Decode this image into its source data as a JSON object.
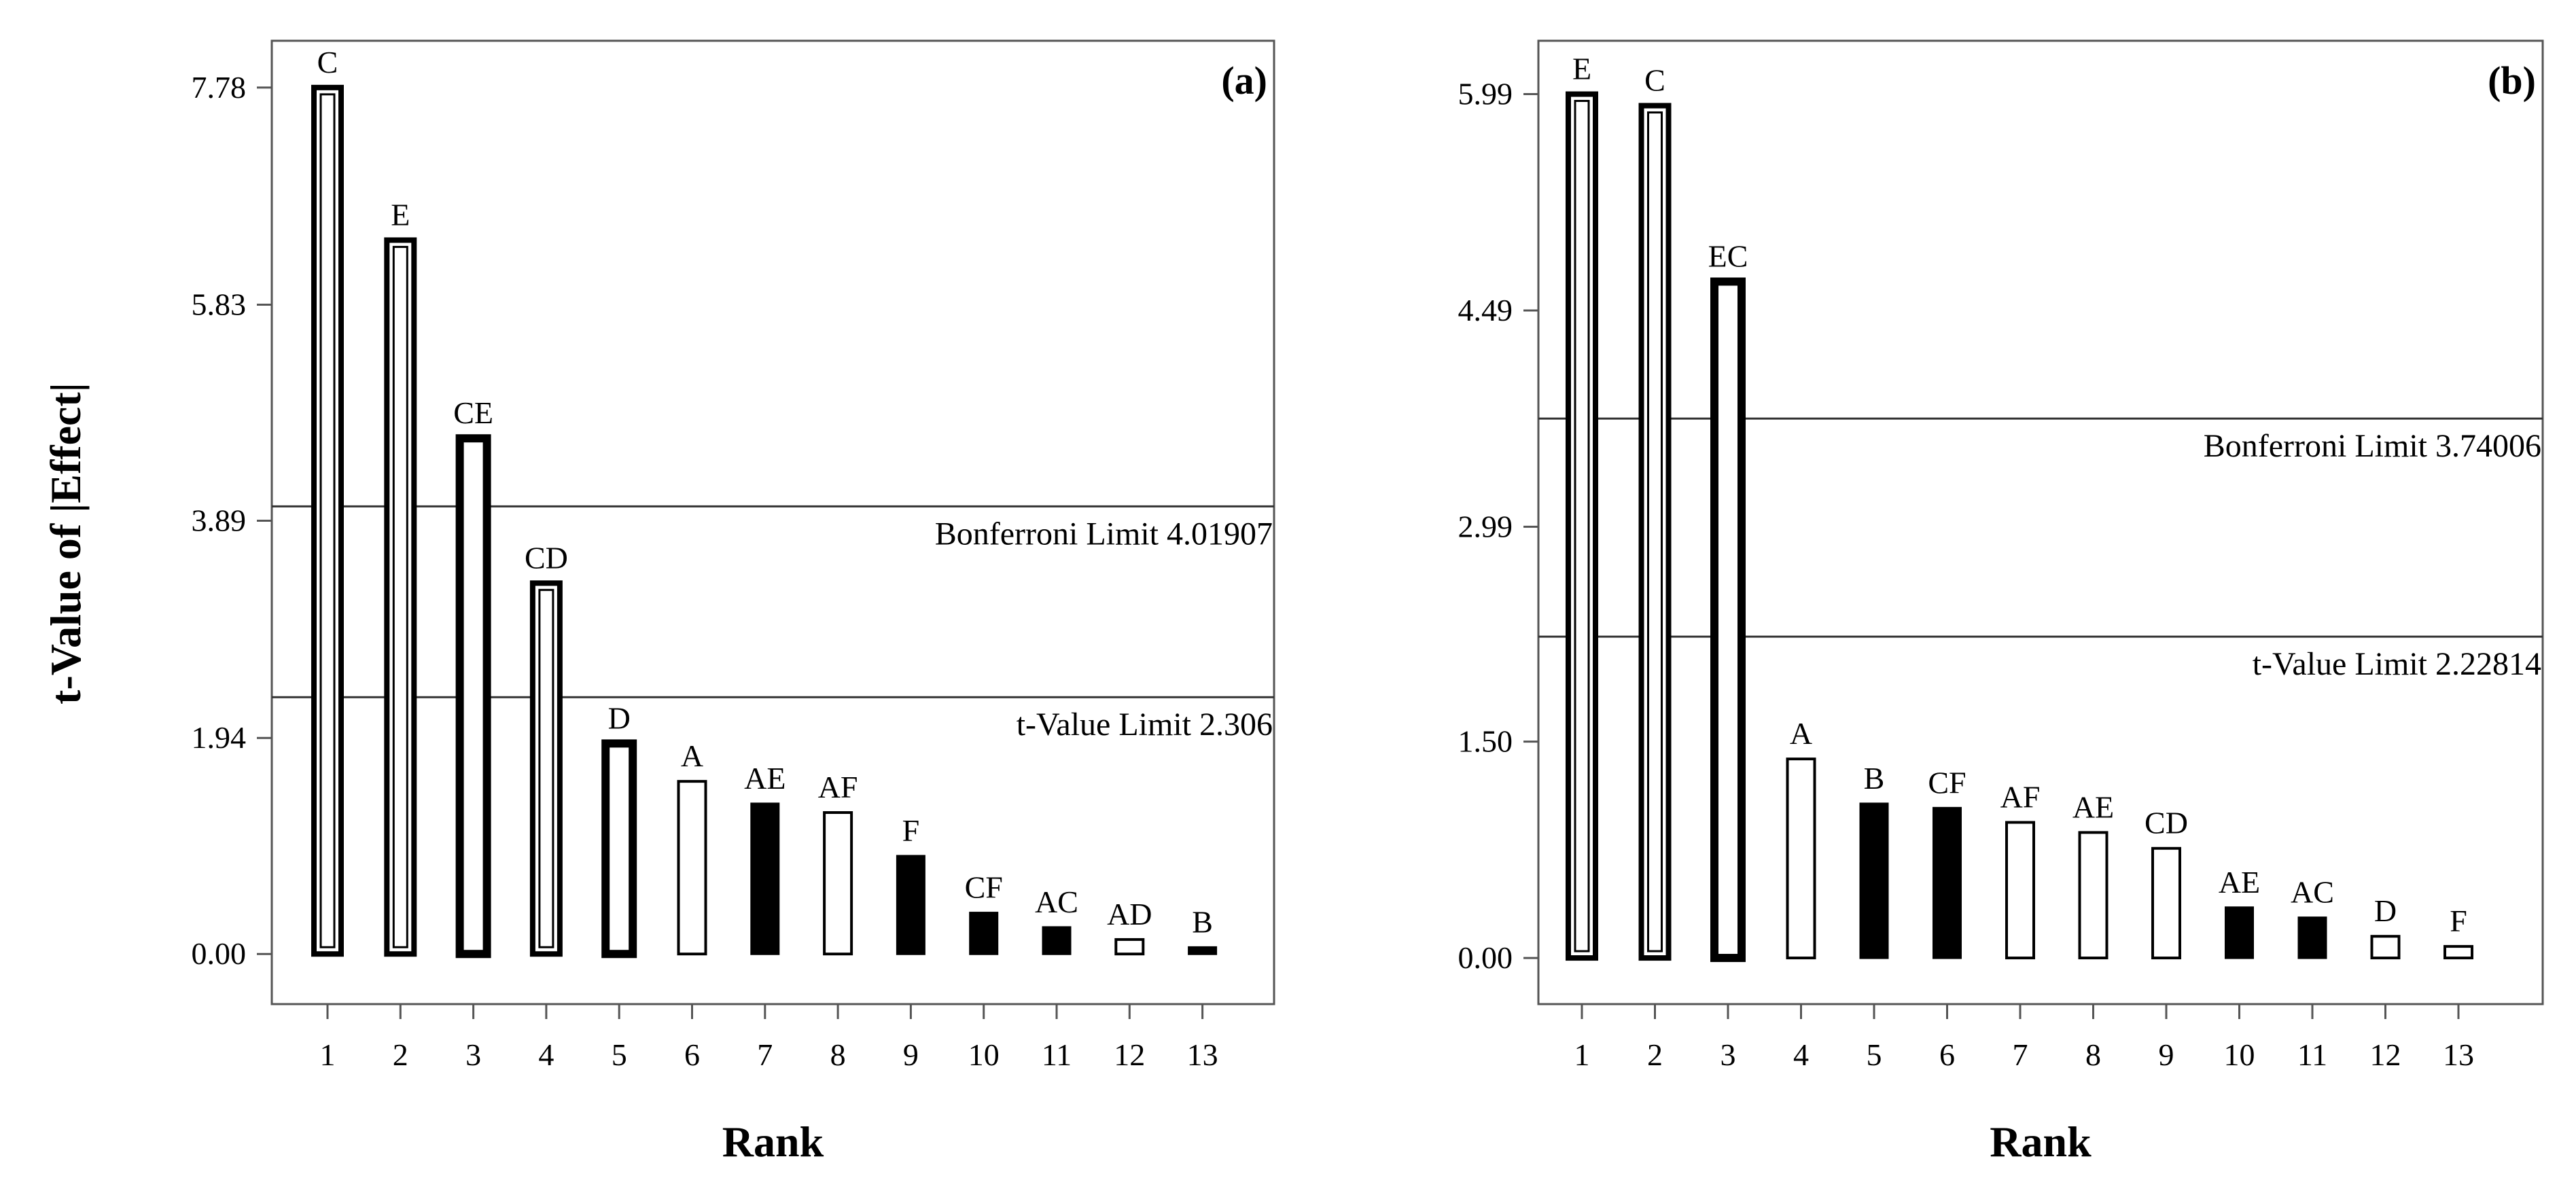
{
  "figure": {
    "ylabel": "t-Value of |Effect|"
  },
  "chart_data": [
    {
      "type": "bar",
      "panel_label": "(a)",
      "xlabel": "Rank",
      "ylabel": "t-Value of |Effect|",
      "ylim": [
        -0.45,
        8.2
      ],
      "yticks": [
        "7.78",
        "5.83",
        "3.89",
        "1.94",
        "0.00"
      ],
      "ytick_values": [
        7.78,
        5.83,
        3.89,
        1.94,
        0.0
      ],
      "categories": [
        "1",
        "2",
        "3",
        "4",
        "5",
        "6",
        "7",
        "8",
        "9",
        "10",
        "11",
        "12",
        "13"
      ],
      "labels": [
        "C",
        "E",
        "CE",
        "CD",
        "D",
        "A",
        "AE",
        "AF",
        "F",
        "CF",
        "AC",
        "AD",
        "B"
      ],
      "values": [
        7.78,
        6.41,
        4.63,
        3.33,
        1.89,
        1.55,
        1.35,
        1.27,
        0.88,
        0.37,
        0.24,
        0.13,
        0.06
      ],
      "bar_styles": [
        "outline-heavy",
        "outline-heavy",
        "filled-outline",
        "outline-heavy",
        "filled-outline",
        "white",
        "black",
        "white",
        "black",
        "black",
        "black",
        "white",
        "black"
      ],
      "legend_note": "white bars = positive effects; black bars = negative effects",
      "limits": [
        {
          "name": "Bonferroni Limit",
          "value": 4.01907,
          "label": "Bonferroni Limit 4.01907"
        },
        {
          "name": "t-Value Limit",
          "value": 2.306,
          "label": "t-Value Limit 2.306"
        }
      ]
    },
    {
      "type": "bar",
      "panel_label": "(b)",
      "xlabel": "Rank",
      "ylabel": "",
      "ylim": [
        -0.32,
        6.36
      ],
      "yticks": [
        "5.99",
        "4.49",
        "2.99",
        "1.50",
        "0.00"
      ],
      "ytick_values": [
        5.99,
        4.49,
        2.99,
        1.5,
        0.0
      ],
      "categories": [
        "1",
        "2",
        "3",
        "4",
        "5",
        "6",
        "7",
        "8",
        "9",
        "10",
        "11",
        "12",
        "13"
      ],
      "labels": [
        "E",
        "C",
        "EC",
        "A",
        "B",
        "CF",
        "AF",
        "AE",
        "CD",
        "AE",
        "AC",
        "D",
        "F"
      ],
      "values": [
        5.99,
        5.91,
        4.69,
        1.38,
        1.07,
        1.04,
        0.94,
        0.87,
        0.76,
        0.35,
        0.28,
        0.15,
        0.08
      ],
      "bar_styles": [
        "outline-heavy",
        "outline-heavy",
        "filled-outline",
        "white",
        "black",
        "black",
        "white",
        "white",
        "white",
        "black",
        "black",
        "white",
        "white"
      ],
      "legend_note": "white bars = positive effects; black bars = negative effects",
      "limits": [
        {
          "name": "Bonferroni Limit",
          "value": 3.74006,
          "label": "Bonferroni Limit 3.74006"
        },
        {
          "name": "t-Value Limit",
          "value": 2.22814,
          "label": "t-Value Limit 2.22814"
        }
      ]
    }
  ]
}
